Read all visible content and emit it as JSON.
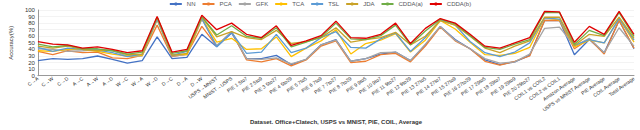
{
  "chart_data": {
    "type": "line",
    "x_label": "Dataset. Office+Clatech, USPS vs MNIST, PIE, COIL, Average",
    "y_label": "Accuracy(%)",
    "categories": [
      "C→A",
      "C→W",
      "C→D",
      "A→C",
      "A→W",
      "A→D",
      "W→C",
      "W→A",
      "W→D",
      "D→C",
      "D→A",
      "D→W",
      "USPS→MNIST",
      "MNIST→USPS",
      "PIE 1 5to7",
      "PIE 2 5to9",
      "PIE 3 5to27",
      "PIE 4 5to29",
      "PIE 5 7to5",
      "PIE 6 7to9",
      "PIE 7 7to27",
      "PIE 8 7to29",
      "PIE 9 9to5",
      "PIE 10 9to7",
      "PIE 11 9to27",
      "PIE 12 9to29",
      "PIE 13 27to5",
      "PIE 14 27to7",
      "PIE 15 27to9",
      "PIE 16 27to29",
      "PIE 17 29to5",
      "PIE 18 29to7",
      "PIE 19 29to9",
      "PIE 20 29to27",
      "COIL1 vs COIL2",
      "COIL2 vs COIL1",
      "Amazon Average",
      "USPS vs MNIST Average",
      "PIE Average",
      "COIL Average",
      "Total Average"
    ],
    "series": [
      {
        "name": "NN",
        "color": "#4472c4",
        "values": [
          23,
          26,
          25,
          26,
          30,
          25,
          19,
          23,
          59,
          26,
          28,
          63,
          44,
          65,
          26,
          26,
          31,
          17,
          25,
          47,
          55,
          22,
          26,
          33,
          36,
          23,
          47,
          75,
          55,
          41,
          24,
          17,
          21,
          31,
          84,
          84,
          32,
          55,
          35,
          84,
          41
        ]
      },
      {
        "name": "PCA",
        "color": "#ed7d31",
        "values": [
          37,
          32,
          38,
          35,
          36,
          27,
          26,
          31,
          77,
          29,
          33,
          75,
          45,
          67,
          24,
          21,
          26,
          15,
          24,
          45,
          53,
          20,
          22,
          32,
          34,
          21,
          45,
          74,
          53,
          41,
          22,
          16,
          22,
          30,
          84,
          84,
          41,
          56,
          33,
          84,
          42
        ]
      },
      {
        "name": "GFK",
        "color": "#a5a5a5",
        "values": [
          41,
          40,
          37,
          38,
          40,
          38,
          30,
          30,
          86,
          30,
          32,
          86,
          46,
          67,
          26,
          25,
          27,
          18,
          25,
          47,
          54,
          22,
          26,
          35,
          36,
          23,
          48,
          75,
          54,
          41,
          26,
          19,
          21,
          33,
          72,
          74,
          45,
          57,
          35,
          73,
          45
        ]
      },
      {
        "name": "TCA",
        "color": "#ffc000",
        "values": [
          38,
          37,
          40,
          40,
          37,
          33,
          30,
          31,
          85,
          32,
          32,
          87,
          51,
          57,
          40,
          41,
          59,
          29,
          42,
          53,
          70,
          33,
          49,
          54,
          64,
          36,
          54,
          84,
          71,
          51,
          32,
          31,
          34,
          43,
          88,
          85,
          44,
          54,
          50,
          87,
          51
        ]
      },
      {
        "name": "TSL",
        "color": "#5b9bd5",
        "values": [
          43,
          37,
          42,
          40,
          39,
          35,
          29,
          33,
          86,
          31,
          37,
          87,
          44,
          66,
          34,
          36,
          63,
          35,
          42,
          58,
          67,
          43,
          42,
          56,
          65,
          37,
          58,
          85,
          77,
          52,
          35,
          29,
          36,
          50,
          88,
          86,
          46,
          55,
          50,
          87,
          54
        ]
      },
      {
        "name": "JDA",
        "color": "#c9a227",
        "values": [
          45,
          42,
          45,
          40,
          38,
          39,
          32,
          33,
          89,
          31,
          34,
          89,
          59,
          67,
          58,
          55,
          69,
          49,
          52,
          58,
          73,
          51,
          55,
          58,
          66,
          47,
          60,
          84,
          77,
          60,
          42,
          35,
          45,
          53,
          89,
          89,
          46,
          63,
          60,
          89,
          57
        ]
      },
      {
        "name": "CDDA(a)",
        "color": "#70ad47",
        "values": [
          48,
          44,
          46,
          41,
          41,
          38,
          33,
          36,
          89,
          34,
          38,
          90,
          62,
          76,
          60,
          57,
          73,
          44,
          51,
          59,
          80,
          56,
          55,
          61,
          77,
          47,
          68,
          86,
          79,
          61,
          43,
          40,
          48,
          55,
          96,
          96,
          48,
          69,
          61,
          96,
          60
        ]
      },
      {
        "name": "CDDA(b)",
        "color": "#e00000",
        "values": [
          52,
          48,
          47,
          42,
          44,
          40,
          35,
          38,
          90,
          36,
          40,
          92,
          70,
          80,
          63,
          58,
          76,
          46,
          53,
          61,
          83,
          58,
          57,
          63,
          80,
          49,
          72,
          87,
          80,
          63,
          45,
          42,
          50,
          58,
          98,
          97,
          51,
          75,
          63,
          98,
          63
        ]
      }
    ],
    "ylim": [
      0,
      100
    ],
    "yticks": [
      0,
      10,
      20,
      30,
      40,
      50,
      60,
      70,
      80,
      90,
      100
    ],
    "grid": true,
    "legend": "top",
    "marker": "none"
  }
}
